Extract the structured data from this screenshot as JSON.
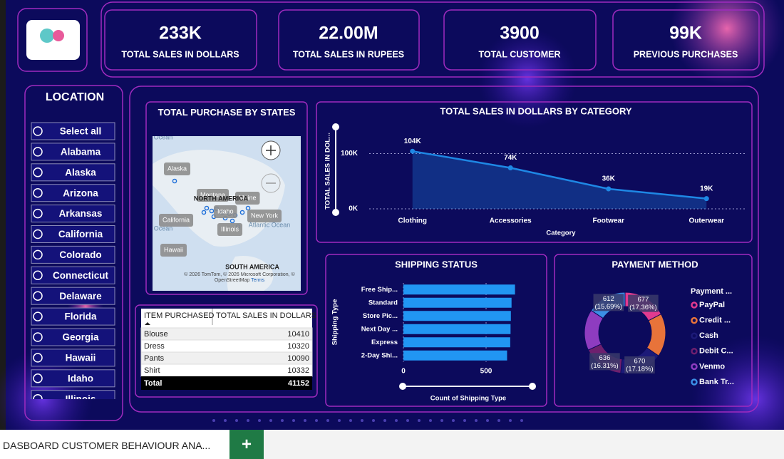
{
  "kpis": [
    {
      "value": "233K",
      "label": "TOTAL SALES IN DOLLARS"
    },
    {
      "value": "22.00M",
      "label": "TOTAL SALES IN RUPEES"
    },
    {
      "value": "3900",
      "label": "TOTAL CUSTOMER"
    },
    {
      "value": "99K",
      "label": "PREVIOUS PURCHASES"
    }
  ],
  "location": {
    "title": "LOCATION",
    "options": [
      "Select all",
      "Alabama",
      "Alaska",
      "Arizona",
      "Arkansas",
      "California",
      "Colorado",
      "Connecticut",
      "Delaware",
      "Florida",
      "Georgia",
      "Hawaii",
      "Idaho",
      "Illinois"
    ]
  },
  "map": {
    "title": "TOTAL PURCHASE BY STATES",
    "labels": [
      "Alaska",
      "Montana",
      "Maine",
      "Idaho",
      "New York",
      "California",
      "Illinois",
      "Hawaii"
    ],
    "regions": [
      "NORTH AMERICA",
      "SOUTH AMERICA"
    ],
    "water": [
      "Ocean",
      "Ocean",
      "Atlantic Ocean"
    ],
    "attribution": "© 2026 TomTom, © 2026 Microsoft Corporation, © OpenStreetMap",
    "terms": "Terms"
  },
  "table": {
    "columns": [
      "ITEM PURCHASED",
      "TOTAL SALES IN DOLLARS"
    ],
    "rows": [
      [
        "Blouse",
        10410
      ],
      [
        "Dress",
        10320
      ],
      [
        "Pants",
        10090
      ],
      [
        "Shirt",
        10332
      ]
    ],
    "total": [
      "Total",
      41152
    ]
  },
  "chart_data": [
    {
      "type": "area",
      "title": "TOTAL SALES IN DOLLARS BY CATEGORY",
      "x_label": "Category",
      "y_label": "TOTAL SALES IN DOL...",
      "categories": [
        "Clothing",
        "Accessories",
        "Footwear",
        "Outerwear"
      ],
      "values": [
        104264,
        74200,
        36093,
        18524
      ],
      "value_labels": [
        "104K",
        "74K",
        "36K",
        "19K"
      ],
      "color": "#1e88e5",
      "ylim": [
        0,
        120000
      ],
      "yticks": [
        {
          "value": 0,
          "label": "0K"
        },
        {
          "value": 100000,
          "label": "100K"
        }
      ],
      "grid": true
    },
    {
      "type": "bar",
      "orientation": "horizontal",
      "title": "SHIPPING STATUS",
      "x_label": "Count of Shipping Type",
      "y_label": "Shipping Type",
      "categories": [
        "Free Ship...",
        "Standard",
        "Store Pic...",
        "Next Day ...",
        "Express",
        "2-Day Shi..."
      ],
      "values": [
        675,
        654,
        650,
        648,
        646,
        627
      ],
      "color": "#2196f3",
      "xlim": [
        0,
        750
      ],
      "xticks": [
        0,
        500
      ],
      "grid": true
    },
    {
      "type": "donut",
      "title": "PAYMENT METHOD",
      "legend_title": "Payment ...",
      "legend": "right",
      "categories": [
        "PayPal",
        "Credit ...",
        "Cash",
        "Debit C...",
        "Venmo",
        "Bank Tr..."
      ],
      "values": [
        677,
        671,
        670,
        636,
        634,
        612
      ],
      "value_labels": [
        "677 (17.36%)",
        null,
        "670 (17.18%)",
        "636 (16.31%)",
        null,
        "612 (15.69%)"
      ],
      "colors": [
        "#e23a8f",
        "#e8733a",
        "#1c1a78",
        "#6e1f6e",
        "#8e3cc0",
        "#3b8fe6"
      ]
    }
  ],
  "footer": {
    "sheet_tab": "DASBOARD CUSTOMER BEHAVIOUR ANA..."
  }
}
